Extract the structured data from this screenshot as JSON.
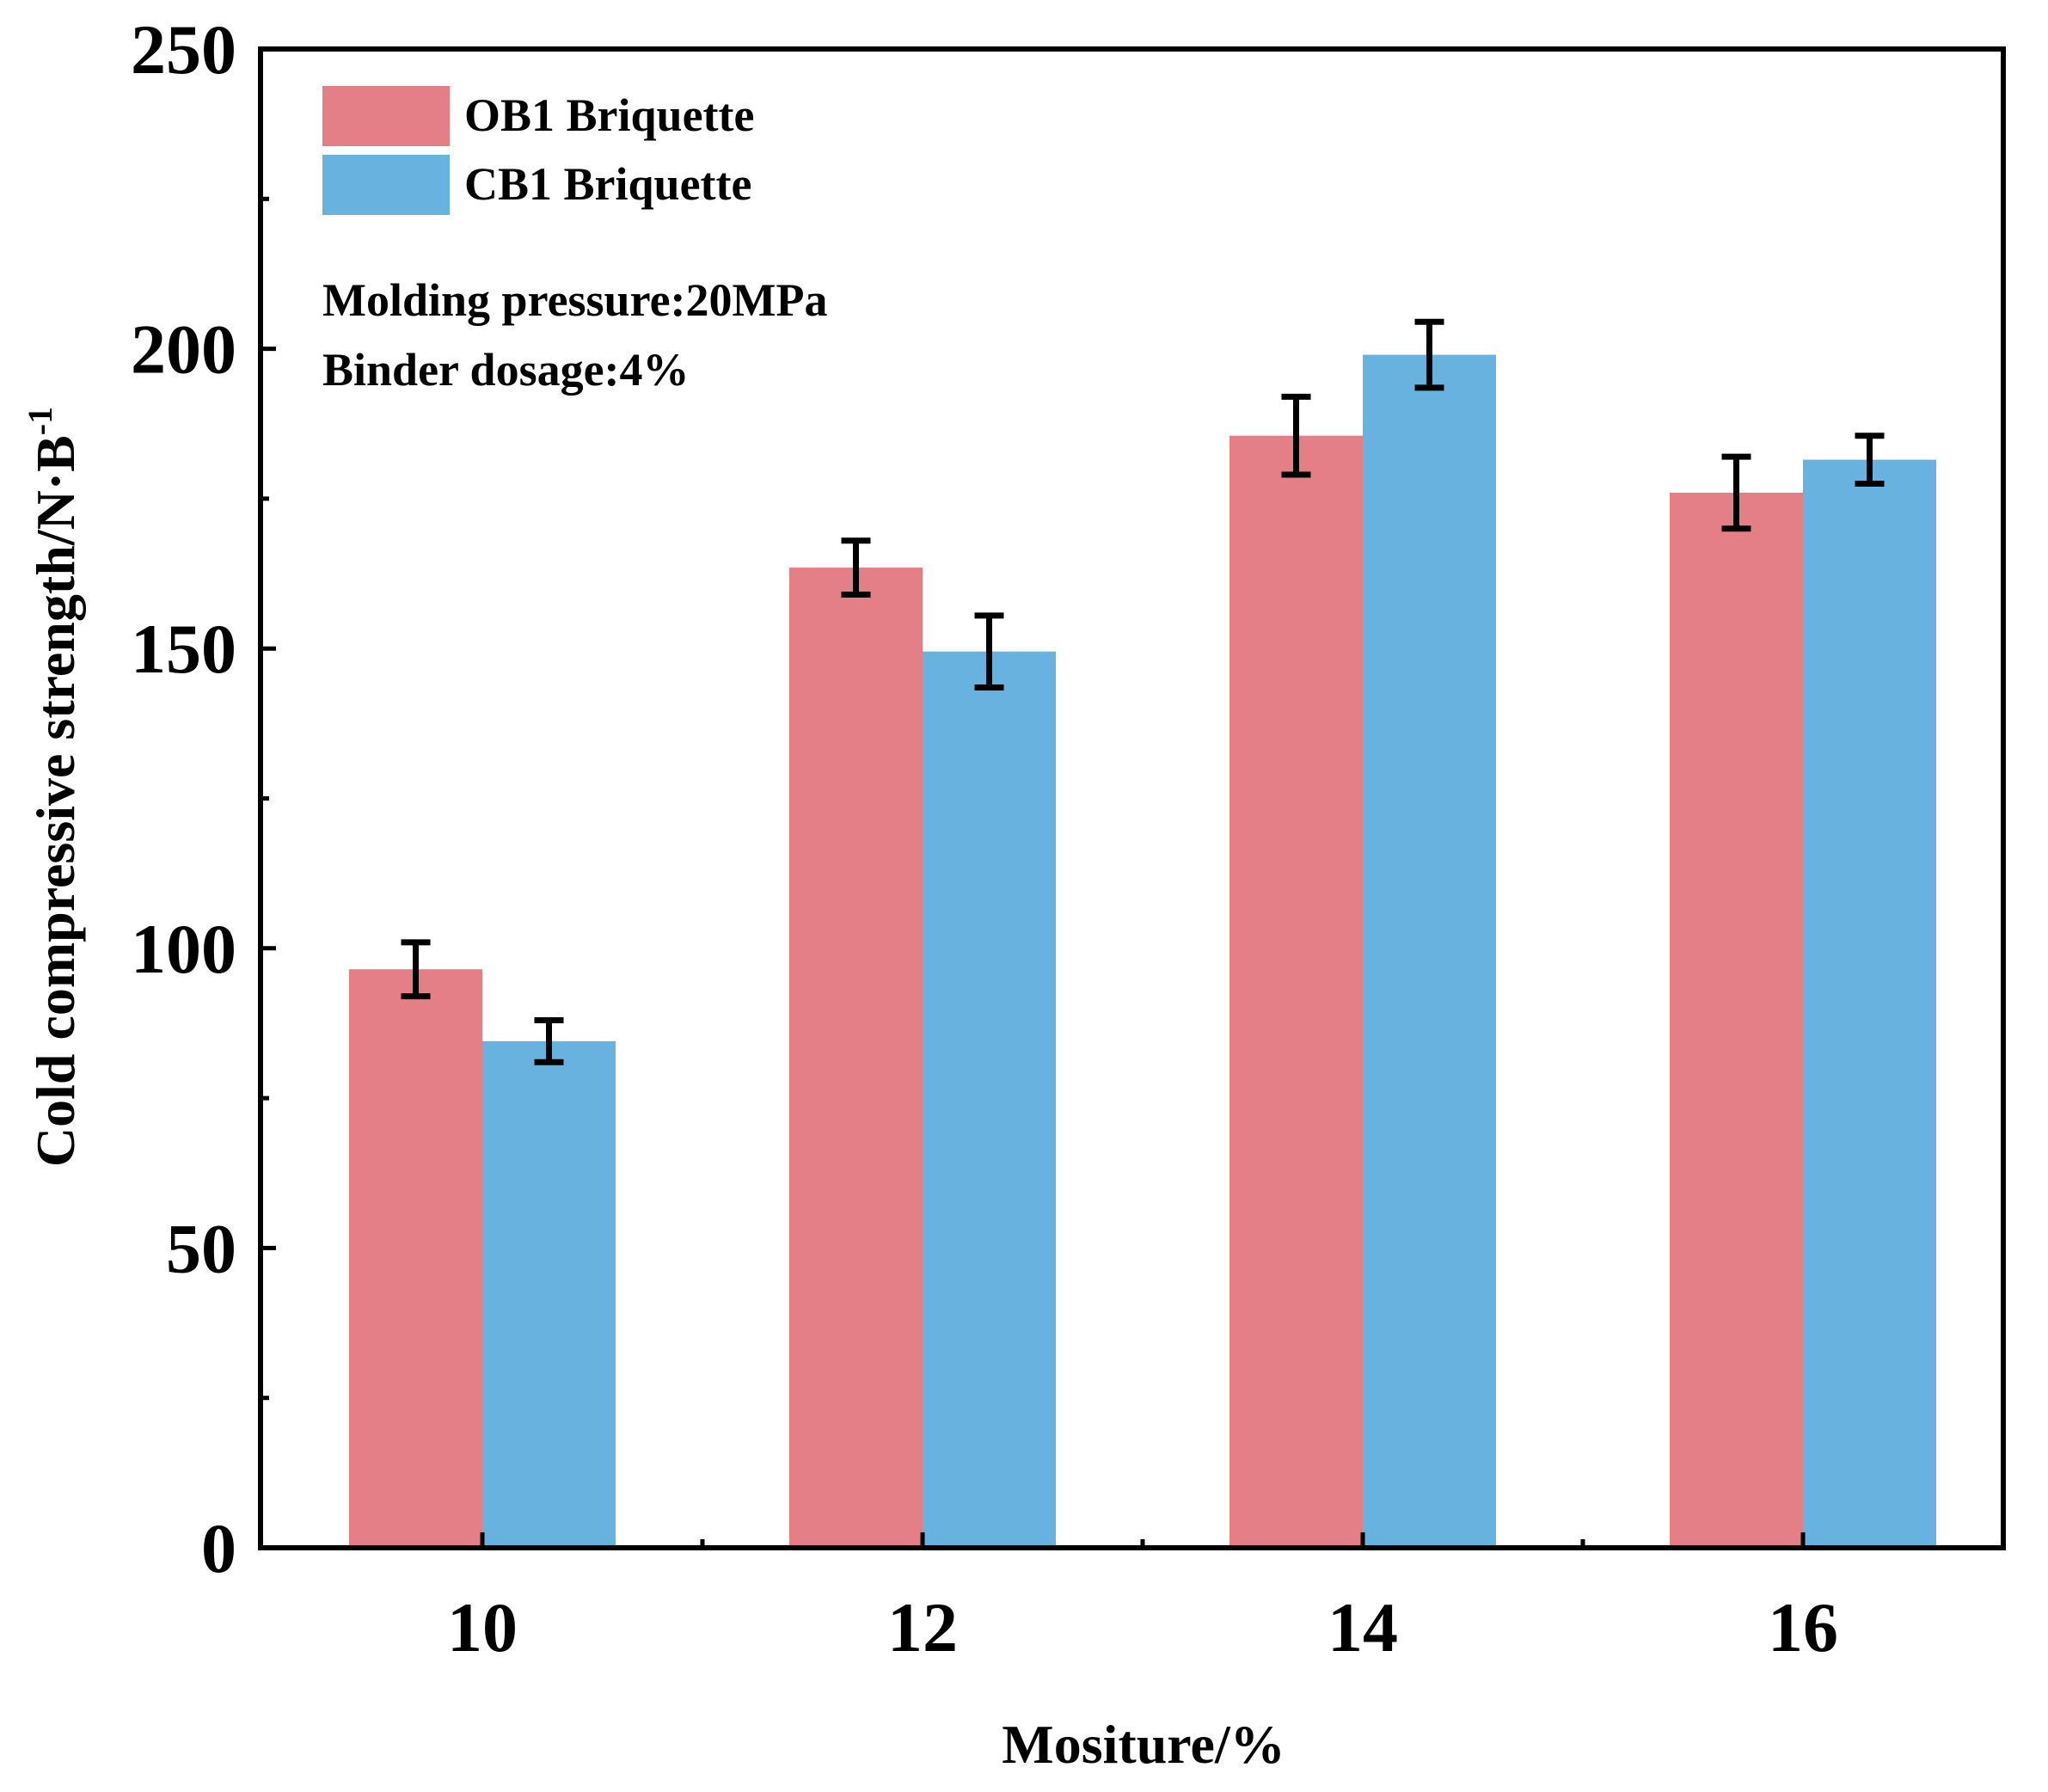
{
  "chart_data": {
    "type": "bar",
    "title": "",
    "xlabel": "Mositure/%",
    "ylabel": "Cold compressive strength/N·B",
    "ylabel_superscript": "-1",
    "categories": [
      "10",
      "12",
      "14",
      "16"
    ],
    "series": [
      {
        "name": "OB1 Briquette",
        "color": "#e57f87",
        "values": [
          96.5,
          163.5,
          185.5,
          176.0
        ],
        "errors": [
          4.5,
          4.5,
          6.5,
          6.0
        ]
      },
      {
        "name": "CB1 Briquette",
        "color": "#67b2df",
        "values": [
          84.5,
          149.5,
          199.0,
          181.5
        ],
        "errors": [
          3.5,
          6.0,
          5.5,
          4.0
        ]
      }
    ],
    "ylim": [
      0,
      250
    ],
    "yticks": [
      0,
      50,
      100,
      150,
      200,
      250
    ],
    "ytick_labels": [
      "0",
      "50",
      "100",
      "150",
      "200",
      "250"
    ],
    "legend_position": "top-left",
    "grid": false,
    "annotations": [
      "Molding pressure:20MPa",
      "Binder dosage:4%"
    ]
  }
}
